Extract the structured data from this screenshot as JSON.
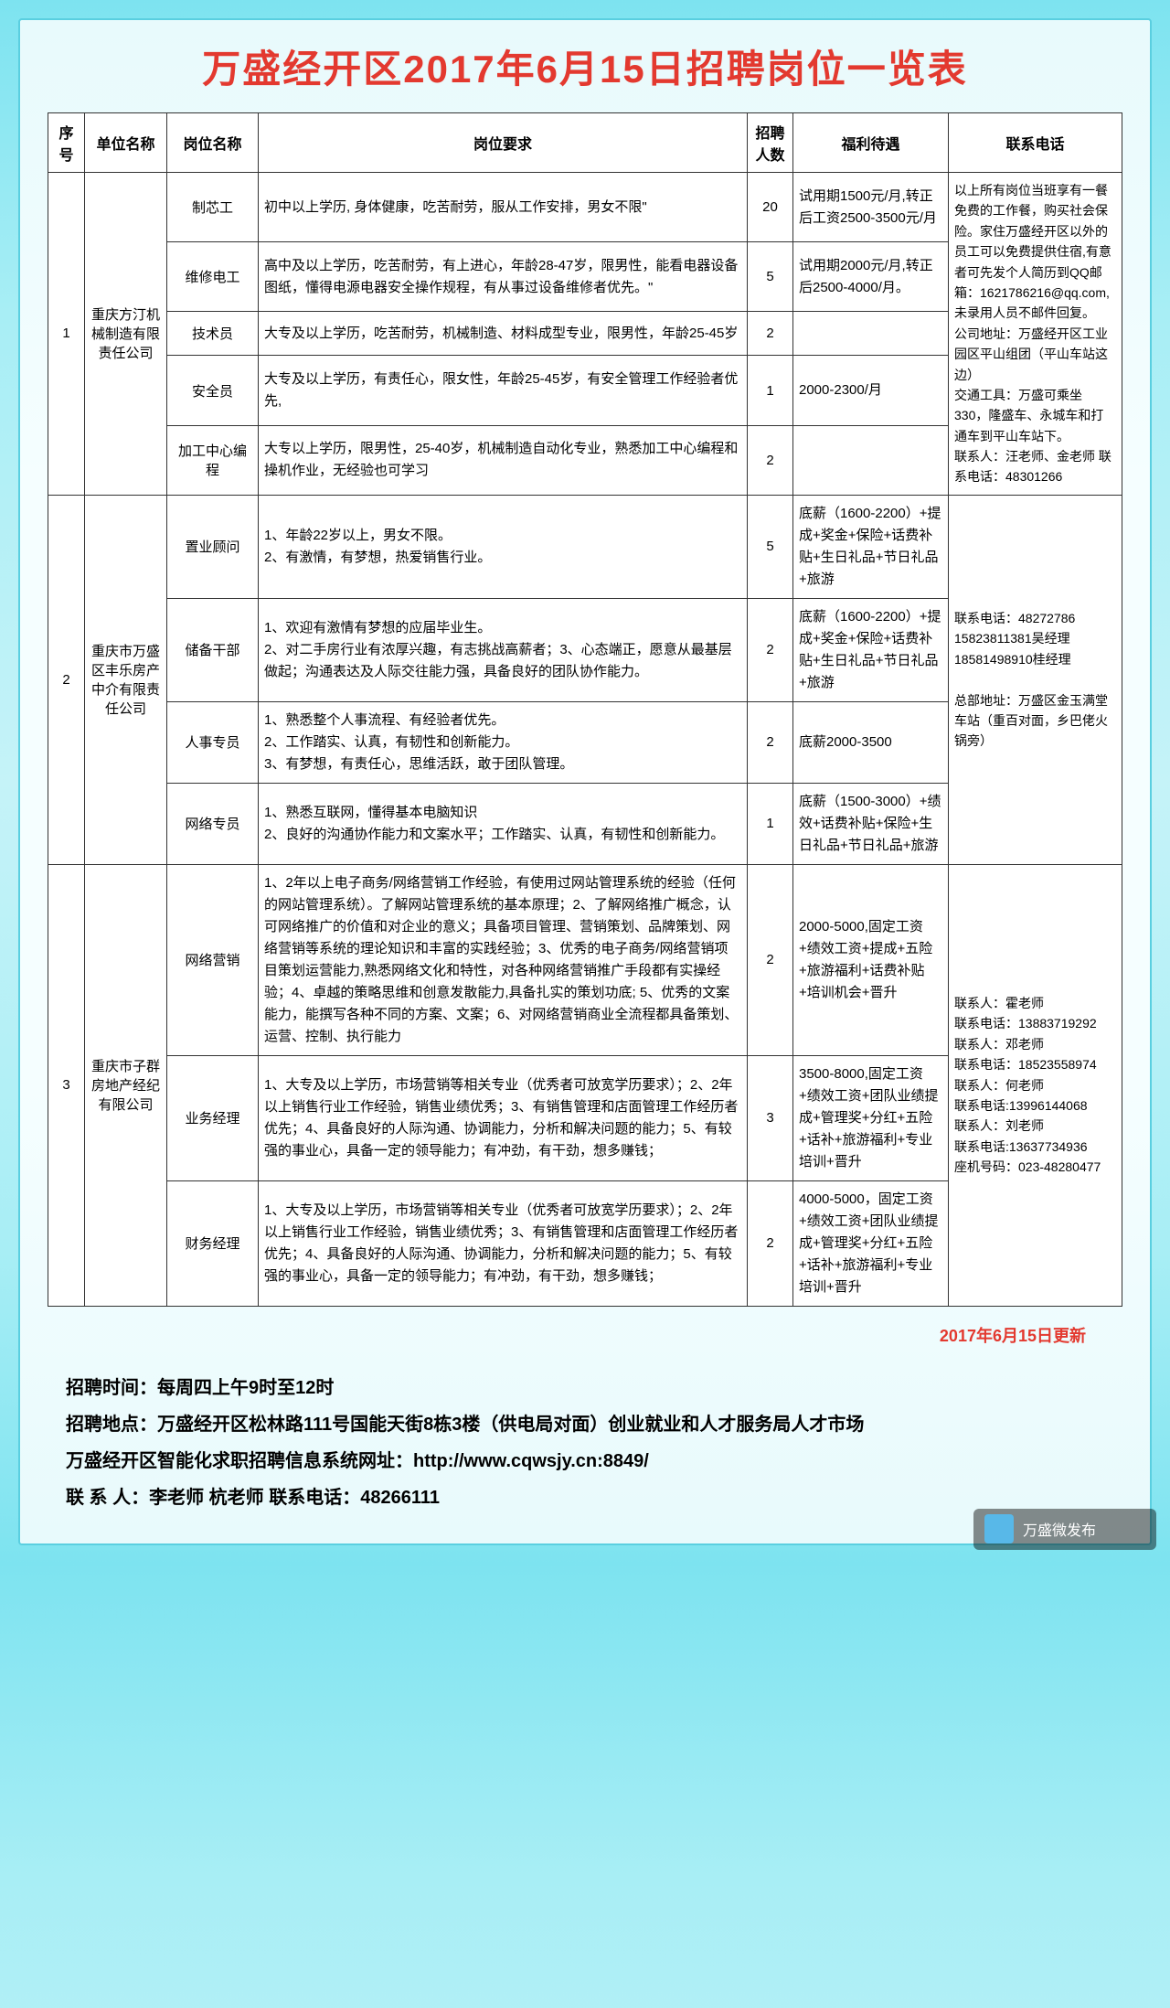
{
  "title": "万盛经开区2017年6月15日招聘岗位一览表",
  "headers": {
    "idx": "序号",
    "company": "单位名称",
    "position": "岗位名称",
    "requirement": "岗位要求",
    "count": "招聘人数",
    "benefit": "福利待遇",
    "contact": "联系电话"
  },
  "groups": [
    {
      "idx": "1",
      "company": "重庆方汀机械制造有限责任公司",
      "contact": "以上所有岗位当班享有一餐免费的工作餐，购买社会保险。家住万盛经开区以外的员工可以免费提供住宿,有意者可先发个人简历到QQ邮箱：1621786216@qq.com,未录用人员不邮件回复。\n公司地址：万盛经开区工业园区平山组团（平山车站这边）\n交通工具：万盛可乘坐330，隆盛车、永城车和打通车到平山车站下。\n联系人：汪老师、金老师    联系电话：48301266",
      "rows": [
        {
          "position": "制芯工",
          "req": "初中以上学历, 身体健康，吃苦耐劳，服从工作安排，男女不限\"",
          "count": "20",
          "benefit": "试用期1500元/月,转正后工资2500-3500元/月"
        },
        {
          "position": "维修电工",
          "req": "高中及以上学历，吃苦耐劳，有上进心，年龄28-47岁，限男性，能看电器设备图纸，懂得电源电器安全操作规程，有从事过设备维修者优先。\"",
          "count": "5",
          "benefit": "试用期2000元/月,转正后2500-4000/月。"
        },
        {
          "position": "技术员",
          "req": "大专及以上学历，吃苦耐劳，机械制造、材料成型专业，限男性，年龄25-45岁",
          "count": "2",
          "benefit": ""
        },
        {
          "position": "安全员",
          "req": "大专及以上学历，有责任心，限女性，年龄25-45岁，有安全管理工作经验者优先,",
          "count": "1",
          "benefit": "2000-2300/月"
        },
        {
          "position": "加工中心编程",
          "req": "大专以上学历，限男性，25-40岁，机械制造自动化专业，熟悉加工中心编程和操机作业，无经验也可学习",
          "count": "2",
          "benefit": ""
        }
      ]
    },
    {
      "idx": "2",
      "company": "重庆市万盛区丰乐房产中介有限责任公司",
      "contact": "联系电话：48272786\n15823811381吴经理\n18581498910桂经理\n\n总部地址：万盛区金玉满堂车站（重百对面，乡巴佬火锅旁）",
      "rows": [
        {
          "position": "置业顾问",
          "req": "1、年龄22岁以上，男女不限。\n2、有激情，有梦想，热爱销售行业。",
          "count": "5",
          "benefit": "底薪（1600-2200）+提成+奖金+保险+话费补贴+生日礼品+节日礼品+旅游"
        },
        {
          "position": "储备干部",
          "req": "1、欢迎有激情有梦想的应届毕业生。\n2、对二手房行业有浓厚兴趣，有志挑战高薪者；3、心态端正，愿意从最基层做起；沟通表达及人际交往能力强，具备良好的团队协作能力。",
          "count": "2",
          "benefit": "底薪（1600-2200）+提成+奖金+保险+话费补贴+生日礼品+节日礼品+旅游"
        },
        {
          "position": "人事专员",
          "req": "1、熟悉整个人事流程、有经验者优先。\n2、工作踏实、认真，有韧性和创新能力。\n3、有梦想，有责任心，思维活跃，敢于团队管理。",
          "count": "2",
          "benefit": "底薪2000-3500"
        },
        {
          "position": "网络专员",
          "req": "1、熟悉互联网，懂得基本电脑知识\n2、良好的沟通协作能力和文案水平；工作踏实、认真，有韧性和创新能力。",
          "count": "1",
          "benefit": "底薪（1500-3000）+绩效+话费补贴+保险+生日礼品+节日礼品+旅游"
        }
      ]
    },
    {
      "idx": "3",
      "company": "重庆市子群房地产经纪有限公司",
      "contact": "联系人：霍老师\n联系电话：13883719292\n联系人：邓老师\n联系电话：18523558974\n联系人：何老师\n联系电话:13996144068\n联系人：刘老师\n联系电话:13637734936\n座机号码：023-48280477",
      "rows": [
        {
          "position": "网络营销",
          "req": "1、2年以上电子商务/网络营销工作经验，有使用过网站管理系统的经验（任何的网站管理系统）。了解网站管理系统的基本原理；2、了解网络推广概念，认可网络推广的价值和对企业的意义；具备项目管理、营销策划、品牌策划、网络营销等系统的理论知识和丰富的实践经验；3、优秀的电子商务/网络营销项目策划运营能力,熟悉网络文化和特性，对各种网络营销推广手段都有实操经验；4、卓越的策略思维和创意发散能力,具备扎实的策划功底; 5、优秀的文案能力，能撰写各种不同的方案、文案；6、对网络营销商业全流程都具备策划、运营、控制、执行能力",
          "count": "2",
          "benefit": "2000-5000,固定工资+绩效工资+提成+五险+旅游福利+话费补贴+培训机会+晋升"
        },
        {
          "position": "业务经理",
          "req": "1、大专及以上学历，市场营销等相关专业（优秀者可放宽学历要求）；2、2年以上销售行业工作经验，销售业绩优秀；3、有销售管理和店面管理工作经历者优先；4、具备良好的人际沟通、协调能力，分析和解决问题的能力；5、有较强的事业心，具备一定的领导能力；有冲劲，有干劲，想多赚钱；",
          "count": "3",
          "benefit": "3500-8000,固定工资+绩效工资+团队业绩提成+管理奖+分红+五险+话补+旅游福利+专业培训+晋升"
        },
        {
          "position": "财务经理",
          "req": "1、大专及以上学历，市场营销等相关专业（优秀者可放宽学历要求）；2、2年以上销售行业工作经验，销售业绩优秀；3、有销售管理和店面管理工作经历者优先；4、具备良好的人际沟通、协调能力，分析和解决问题的能力；5、有较强的事业心，具备一定的领导能力；有冲劲，有干劲，想多赚钱；",
          "count": "2",
          "benefit": "4000-5000，固定工资+绩效工资+团队业绩提成+管理奖+分红+五险+话补+旅游福利+专业培训+晋升"
        }
      ]
    }
  ],
  "update_note": "2017年6月15日更新",
  "footer": {
    "l1": "招聘时间：每周四上午9时至12时",
    "l2": "招聘地点：万盛经开区松林路111号国能天街8栋3楼（供电局对面）创业就业和人才服务局人才市场",
    "l3": "万盛经开区智能化求职招聘信息系统网址：http://www.cqwsjy.cn:8849/",
    "l4": "联 系 人：李老师  杭老师    联系电话：48266111"
  },
  "wechat": "万盛微发布"
}
